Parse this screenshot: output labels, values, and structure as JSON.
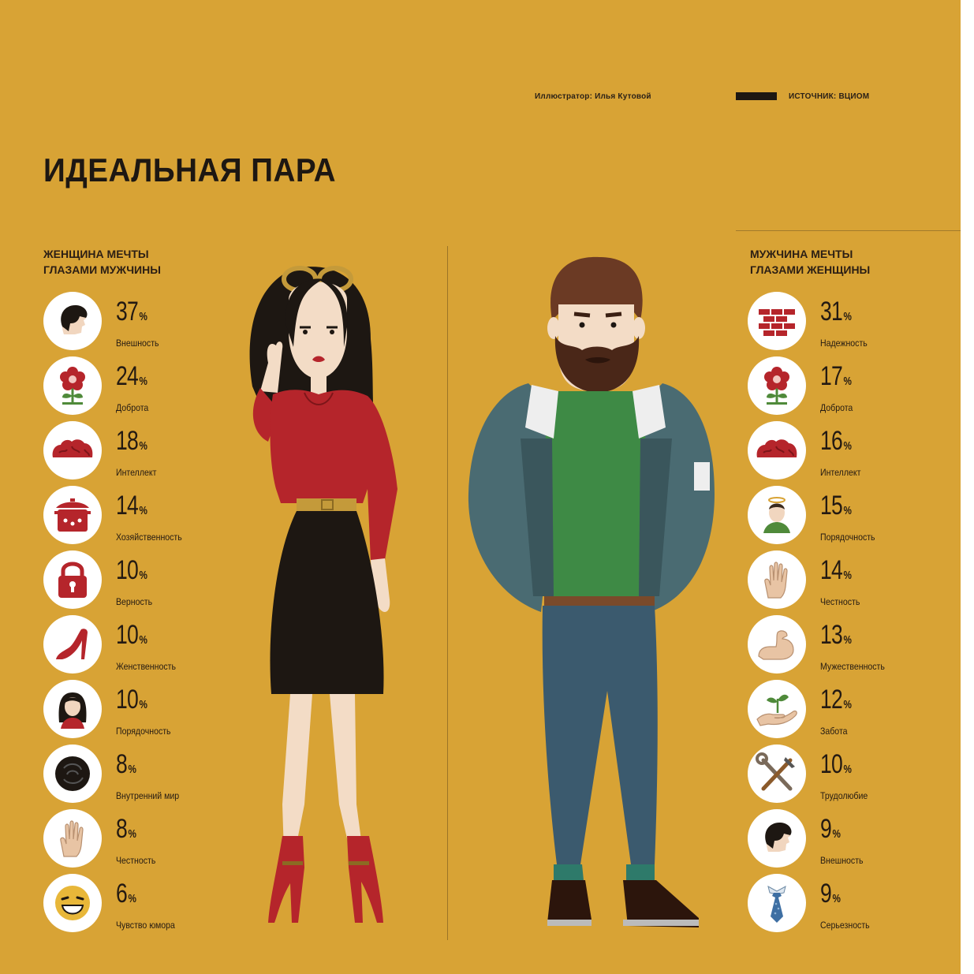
{
  "credits": {
    "illustrator": "Иллюстратор: Илья Кутовой",
    "source": "ИСТОЧНИК: ВЦИОМ"
  },
  "title": "ИДЕАЛЬНАЯ ПАРА",
  "left": {
    "heading_line1": "ЖЕНЩИНА МЕЧТЫ",
    "heading_line2": "ГЛАЗАМИ МУЖЧИНЫ",
    "items": [
      {
        "value": "37",
        "unit": "%",
        "label": "Внешность",
        "icon": "face-profile-icon"
      },
      {
        "value": "24",
        "unit": "%",
        "label": "Доброта",
        "icon": "flower-icon"
      },
      {
        "value": "18",
        "unit": "%",
        "label": "Интеллект",
        "icon": "brain-icon"
      },
      {
        "value": "14",
        "unit": "%",
        "label": "Хозяйственность",
        "icon": "cooking-pot-icon"
      },
      {
        "value": "10",
        "unit": "%",
        "label": "Верность",
        "icon": "padlock-icon"
      },
      {
        "value": "10",
        "unit": "%",
        "label": "Женственность",
        "icon": "high-heel-icon"
      },
      {
        "value": "10",
        "unit": "%",
        "label": "Порядочность",
        "icon": "woman-portrait-icon"
      },
      {
        "value": "8",
        "unit": "%",
        "label": "Внутренний мир",
        "icon": "black-hole-icon"
      },
      {
        "value": "8",
        "unit": "%",
        "label": "Честность",
        "icon": "open-hand-icon"
      },
      {
        "value": "6",
        "unit": "%",
        "label": "Чувство юмора",
        "icon": "laughing-face-icon"
      }
    ]
  },
  "right": {
    "heading_line1": "МУЖЧИНА МЕЧТЫ",
    "heading_line2": "ГЛАЗАМИ ЖЕНЩИНЫ",
    "items": [
      {
        "value": "31",
        "unit": "%",
        "label": "Надежность",
        "icon": "brick-wall-icon"
      },
      {
        "value": "17",
        "unit": "%",
        "label": "Доброта",
        "icon": "flower-icon"
      },
      {
        "value": "16",
        "unit": "%",
        "label": "Интеллект",
        "icon": "brain-icon"
      },
      {
        "value": "15",
        "unit": "%",
        "label": "Порядочность",
        "icon": "man-halo-icon"
      },
      {
        "value": "14",
        "unit": "%",
        "label": "Честность",
        "icon": "open-hand-icon"
      },
      {
        "value": "13",
        "unit": "%",
        "label": "Мужественность",
        "icon": "flexed-arm-icon"
      },
      {
        "value": "12",
        "unit": "%",
        "label": "Забота",
        "icon": "hand-sprout-icon"
      },
      {
        "value": "10",
        "unit": "%",
        "label": "Трудолюбие",
        "icon": "tools-icon"
      },
      {
        "value": "9",
        "unit": "%",
        "label": "Внешность",
        "icon": "face-profile-icon"
      },
      {
        "value": "9",
        "unit": "%",
        "label": "Серьезность",
        "icon": "necktie-icon"
      }
    ]
  },
  "colors": {
    "background": "#d8a335",
    "icon_red": "#b5252b",
    "text_dark": "#241a12"
  }
}
